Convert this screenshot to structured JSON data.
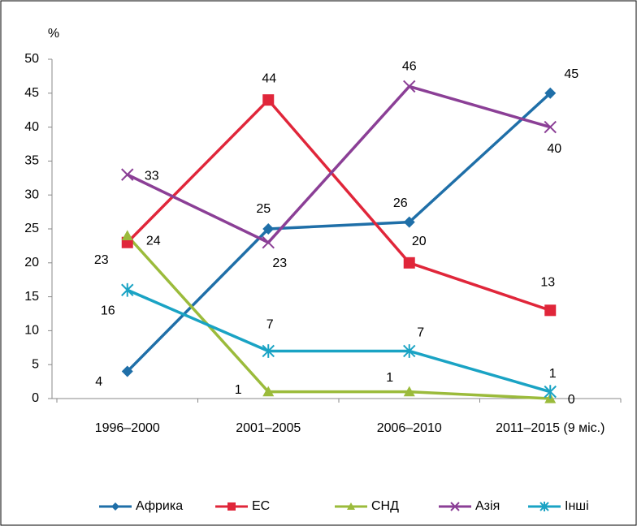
{
  "chart_data": {
    "type": "line",
    "y_label": "%",
    "categories": [
      "1996–2000",
      "2001–2005",
      "2006–2010",
      "2011–2015 (9 міс.)"
    ],
    "series": [
      {
        "name": "Африка",
        "color": "#1f6fa8",
        "marker": "diamond",
        "values": [
          4,
          25,
          26,
          45
        ]
      },
      {
        "name": "ЕС",
        "color": "#e0263a",
        "marker": "square",
        "values": [
          23,
          44,
          20,
          13
        ]
      },
      {
        "name": "СНД",
        "color": "#9bbb3b",
        "marker": "triangle",
        "values": [
          24,
          1,
          1,
          0
        ]
      },
      {
        "name": "Азія",
        "color": "#8b3f96",
        "marker": "x",
        "values": [
          33,
          23,
          46,
          40
        ]
      },
      {
        "name": "Інші",
        "color": "#1aa3c4",
        "marker": "asterisk",
        "values": [
          16,
          7,
          7,
          1
        ]
      }
    ],
    "ylim": [
      0,
      50
    ],
    "yticks": [
      0,
      5,
      10,
      15,
      20,
      25,
      30,
      35,
      40,
      45,
      50
    ],
    "legend": "bottom"
  }
}
